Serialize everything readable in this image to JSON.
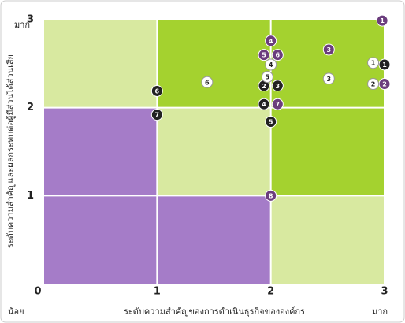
{
  "chart_data": {
    "type": "scatter",
    "y_axis_label": "ระดับความสำคัญและผลกระทบต่อผู้มีส่วนได้ส่วนเสีย",
    "x_axis_label": "ระดับความสำคัญของการดำเนินธุรกิจขององค์กร",
    "annotations": [
      "มาก",
      "น้อย",
      "มาก"
    ],
    "xlim": [
      0,
      3
    ],
    "ylim": [
      0,
      3
    ],
    "xticks": [
      0,
      1,
      2,
      3
    ],
    "yticks": [
      1,
      2,
      3
    ],
    "series": [
      {
        "color": "#6b3d7d",
        "point_labels": [
          "1",
          "4",
          "5",
          "6",
          "3",
          "2",
          "7",
          "8"
        ],
        "x": [
          2.98,
          2.0,
          1.94,
          2.06,
          2.51,
          3.0,
          2.06,
          2.0
        ],
        "values": [
          2.99,
          2.76,
          2.6,
          2.6,
          2.66,
          2.27,
          2.04,
          1.0
        ]
      },
      {
        "color": "#222222",
        "point_labels": [
          "1",
          "6",
          "7",
          "2",
          "3",
          "4",
          "5"
        ],
        "x": [
          3.0,
          1.0,
          1.0,
          1.94,
          2.06,
          1.94,
          2.0
        ],
        "values": [
          2.49,
          2.19,
          1.92,
          2.25,
          2.25,
          2.04,
          1.84
        ]
      },
      {
        "color": "#ffffff",
        "point_labels": [
          "4",
          "5",
          "6",
          "3",
          "1",
          "2"
        ],
        "x": [
          2.0,
          1.97,
          1.44,
          2.51,
          2.9,
          2.9
        ],
        "values": [
          2.49,
          2.35,
          2.29,
          2.33,
          2.51,
          2.27
        ]
      }
    ]
  }
}
